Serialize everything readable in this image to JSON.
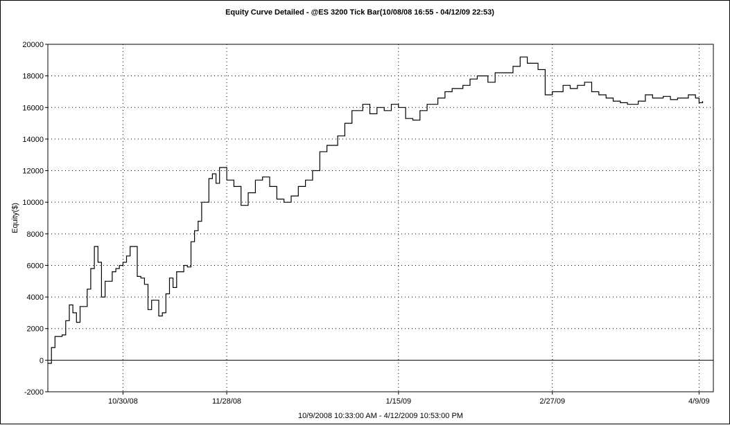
{
  "chart_data": {
    "type": "line",
    "title": "Equity Curve Detailed - @ES 3200 Tick Bar(10/08/08 16:55 - 04/12/09 22:53)",
    "xlabel": "10/9/2008 10:33:00 AM - 4/12/2009 10:53:00 PM",
    "ylabel": "Equity($)",
    "ylim": [
      -2000,
      20000
    ],
    "yticks": [
      -2000,
      0,
      2000,
      4000,
      6000,
      8000,
      10000,
      12000,
      14000,
      16000,
      18000,
      20000
    ],
    "ytick_labels": [
      "-2000",
      "0",
      "2000",
      "4000",
      "6000",
      "8000",
      "10000",
      "12000",
      "14000",
      "16000",
      "18000",
      "20000"
    ],
    "xlim": [
      "2008-10-09",
      "2009-04-13"
    ],
    "xticks": [
      "2008-10-30",
      "2008-11-28",
      "2009-01-15",
      "2009-02-27",
      "2009-04-09"
    ],
    "xtick_labels": [
      "10/30/08",
      "11/28/08",
      "1/15/09",
      "2/27/09",
      "4/9/09"
    ],
    "grid": true,
    "series": [
      {
        "color": "#000000",
        "x": [
          "2008-10-09",
          "2008-10-10",
          "2008-10-11",
          "2008-10-13",
          "2008-10-14",
          "2008-10-15",
          "2008-10-16",
          "2008-10-17",
          "2008-10-18",
          "2008-10-20",
          "2008-10-21",
          "2008-10-22",
          "2008-10-23",
          "2008-10-24",
          "2008-10-25",
          "2008-10-27",
          "2008-10-28",
          "2008-10-29",
          "2008-10-30",
          "2008-10-31",
          "2008-11-01",
          "2008-11-03",
          "2008-11-04",
          "2008-11-05",
          "2008-11-06",
          "2008-11-07",
          "2008-11-09",
          "2008-11-10",
          "2008-11-11",
          "2008-11-12",
          "2008-11-13",
          "2008-11-14",
          "2008-11-16",
          "2008-11-17",
          "2008-11-18",
          "2008-11-19",
          "2008-11-20",
          "2008-11-21",
          "2008-11-23",
          "2008-11-24",
          "2008-11-25",
          "2008-11-26",
          "2008-11-28",
          "2008-11-30",
          "2008-12-02",
          "2008-12-04",
          "2008-12-06",
          "2008-12-08",
          "2008-12-10",
          "2008-12-12",
          "2008-12-14",
          "2008-12-16",
          "2008-12-18",
          "2008-12-20",
          "2008-12-22",
          "2008-12-24",
          "2008-12-26",
          "2008-12-29",
          "2008-12-31",
          "2009-01-02",
          "2009-01-05",
          "2009-01-07",
          "2009-01-09",
          "2009-01-11",
          "2009-01-13",
          "2009-01-15",
          "2009-01-17",
          "2009-01-19",
          "2009-01-21",
          "2009-01-23",
          "2009-01-26",
          "2009-01-28",
          "2009-01-30",
          "2009-02-02",
          "2009-02-04",
          "2009-02-06",
          "2009-02-09",
          "2009-02-11",
          "2009-02-13",
          "2009-02-16",
          "2009-02-18",
          "2009-02-20",
          "2009-02-23",
          "2009-02-25",
          "2009-02-27",
          "2009-03-02",
          "2009-03-04",
          "2009-03-06",
          "2009-03-08",
          "2009-03-10",
          "2009-03-12",
          "2009-03-14",
          "2009-03-16",
          "2009-03-18",
          "2009-03-20",
          "2009-03-23",
          "2009-03-25",
          "2009-03-27",
          "2009-03-30",
          "2009-04-01",
          "2009-04-03",
          "2009-04-06",
          "2009-04-08",
          "2009-04-09",
          "2009-04-10"
        ],
        "y": [
          -200,
          800,
          1500,
          1600,
          2500,
          3500,
          3000,
          2400,
          3400,
          4500,
          5800,
          7200,
          6200,
          4000,
          5000,
          5600,
          5800,
          6000,
          6200,
          6600,
          7200,
          5300,
          5200,
          4800,
          3200,
          3800,
          2800,
          3000,
          4200,
          5200,
          4600,
          5600,
          6000,
          5900,
          7500,
          8200,
          8800,
          10000,
          11500,
          11800,
          11200,
          12200,
          11400,
          11000,
          9800,
          10600,
          11400,
          11600,
          11000,
          10200,
          10000,
          10400,
          11000,
          11400,
          12000,
          13200,
          13600,
          14200,
          15000,
          15800,
          16200,
          15600,
          16000,
          15800,
          16200,
          16000,
          15300,
          15200,
          15800,
          16200,
          16600,
          17000,
          17200,
          17400,
          17800,
          18000,
          17600,
          18200,
          18200,
          18600,
          19200,
          18800,
          18400,
          16800,
          17000,
          17400,
          17200,
          17400,
          17600,
          17000,
          16800,
          16600,
          16400,
          16300,
          16200,
          16400,
          16800,
          16600,
          16700,
          16500,
          16600,
          16800,
          16600,
          16300,
          16400
        ]
      }
    ]
  }
}
